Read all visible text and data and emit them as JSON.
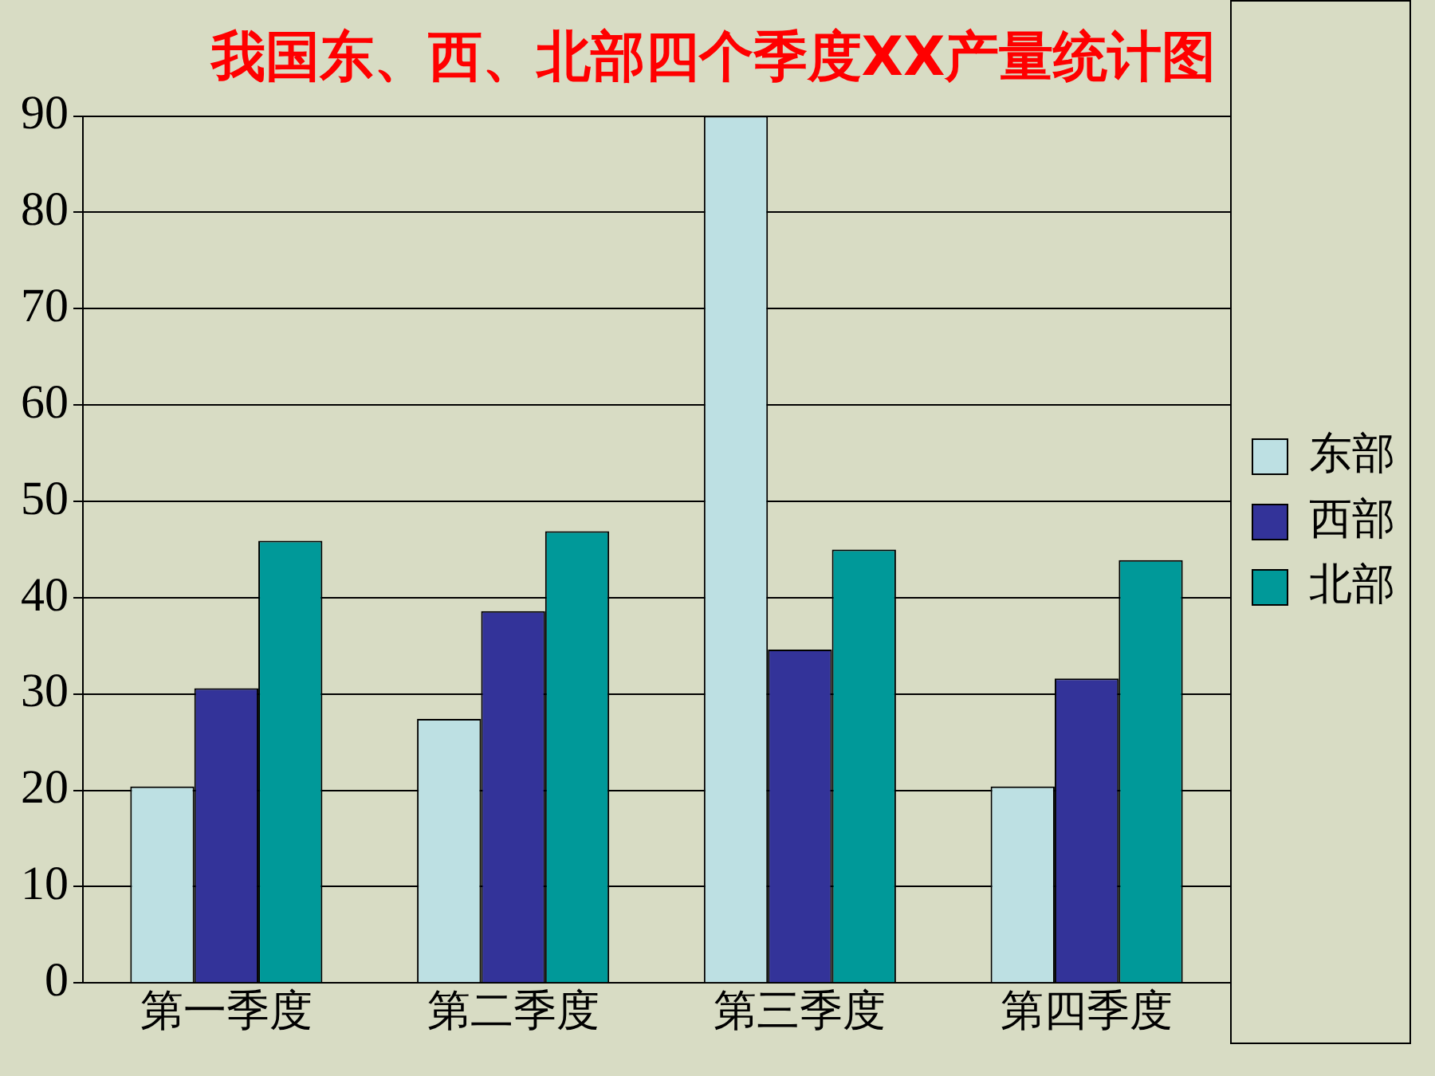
{
  "chart_data": {
    "type": "bar",
    "title": "我国东、西、北部四个季度XX产量统计图",
    "categories": [
      "第一季度",
      "第二季度",
      "第三季度",
      "第四季度"
    ],
    "series": [
      {
        "name": "东部",
        "color": "#bde0e3",
        "values": [
          20.4,
          27.4,
          90,
          20.4
        ]
      },
      {
        "name": "西部",
        "color": "#333399",
        "values": [
          30.6,
          38.6,
          34.6,
          31.6
        ]
      },
      {
        "name": "北部",
        "color": "#009999",
        "values": [
          45.9,
          46.9,
          45,
          43.9
        ]
      }
    ],
    "ylim": [
      0,
      90
    ],
    "yticks": [
      0,
      10,
      20,
      30,
      40,
      50,
      60,
      70,
      80,
      90
    ],
    "grid": "y",
    "legend": "right"
  }
}
